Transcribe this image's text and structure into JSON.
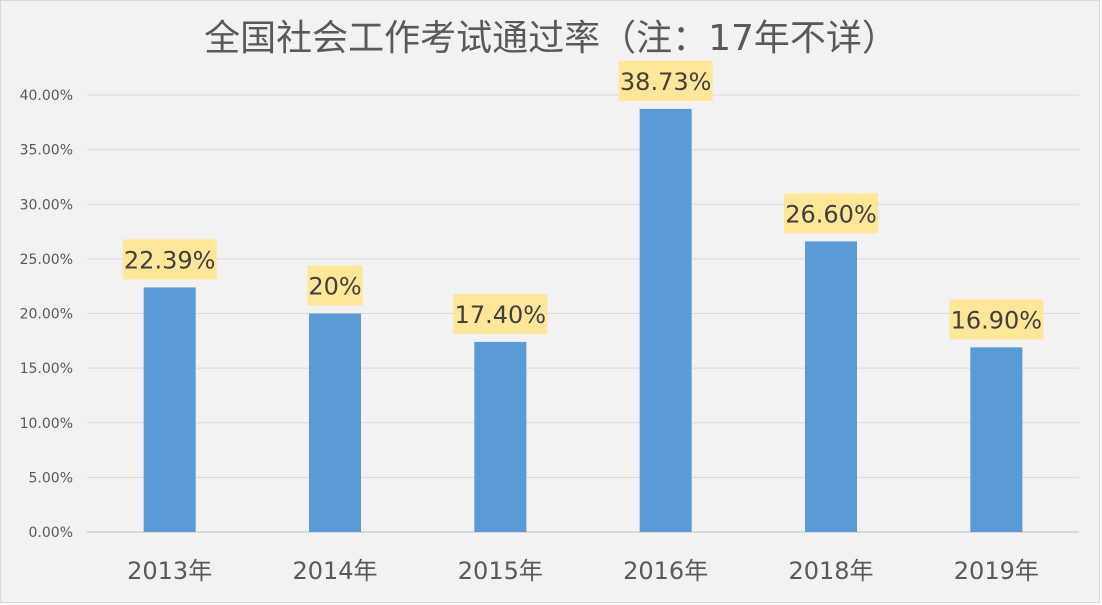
{
  "chart_data": {
    "type": "bar",
    "title": "全国社会工作考试通过率（注：17年不详）",
    "categories": [
      "2013年",
      "2014年",
      "2015年",
      "2016年",
      "2018年",
      "2019年"
    ],
    "values": [
      22.39,
      20,
      17.4,
      38.73,
      26.6,
      16.9
    ],
    "data_labels": [
      "22.39%",
      "20%",
      "17.40%",
      "38.73%",
      "26.60%",
      "16.90%"
    ],
    "y_ticks": [
      "0.00%",
      "5.00%",
      "10.00%",
      "15.00%",
      "20.00%",
      "25.00%",
      "30.00%",
      "35.00%",
      "40.00%"
    ],
    "ylim": [
      0,
      40
    ],
    "grid": true,
    "legend": "none",
    "colors": {
      "bar": "#5b9bd5",
      "label_background": "#ffe699",
      "gridline": "#d9d9d9",
      "background": "#f2f2f2",
      "text": "#595959"
    }
  }
}
